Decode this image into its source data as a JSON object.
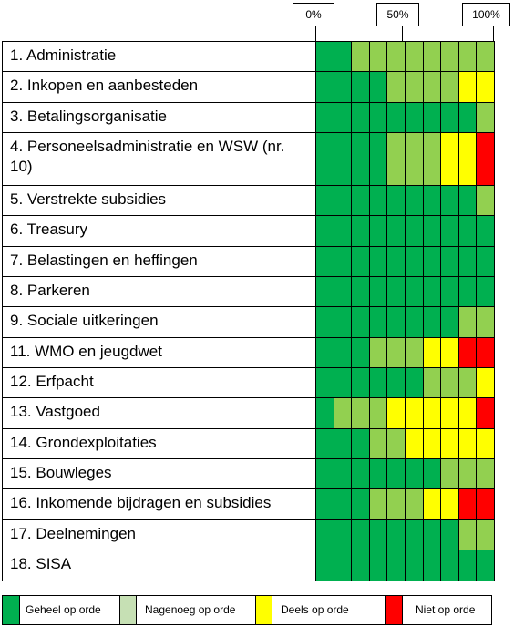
{
  "header": {
    "scale_labels": [
      "0%",
      "50%",
      "100%"
    ]
  },
  "table": {
    "rows": [
      {
        "label": "1. Administratie",
        "cells": [
          "#00b050",
          "#00b050",
          "#92d050",
          "#92d050",
          "#92d050",
          "#92d050",
          "#92d050",
          "#92d050",
          "#92d050",
          "#92d050"
        ]
      },
      {
        "label": "2. Inkopen en aanbesteden",
        "cells": [
          "#00b050",
          "#00b050",
          "#00b050",
          "#00b050",
          "#92d050",
          "#92d050",
          "#92d050",
          "#92d050",
          "#ffff00",
          "#ffff00"
        ]
      },
      {
        "label": "3. Betalingsorganisatie",
        "cells": [
          "#00b050",
          "#00b050",
          "#00b050",
          "#00b050",
          "#00b050",
          "#00b050",
          "#00b050",
          "#00b050",
          "#00b050",
          "#92d050"
        ]
      },
      {
        "label": "4. Personeelsadministratie en WSW (nr. 10)",
        "cells": [
          "#00b050",
          "#00b050",
          "#00b050",
          "#00b050",
          "#92d050",
          "#92d050",
          "#92d050",
          "#ffff00",
          "#ffff00",
          "#ff0000"
        ]
      },
      {
        "label": "5. Verstrekte subsidies",
        "cells": [
          "#00b050",
          "#00b050",
          "#00b050",
          "#00b050",
          "#00b050",
          "#00b050",
          "#00b050",
          "#00b050",
          "#00b050",
          "#92d050"
        ]
      },
      {
        "label": "6. Treasury",
        "cells": [
          "#00b050",
          "#00b050",
          "#00b050",
          "#00b050",
          "#00b050",
          "#00b050",
          "#00b050",
          "#00b050",
          "#00b050",
          "#00b050"
        ]
      },
      {
        "label": "7. Belastingen en heffingen",
        "cells": [
          "#00b050",
          "#00b050",
          "#00b050",
          "#00b050",
          "#00b050",
          "#00b050",
          "#00b050",
          "#00b050",
          "#00b050",
          "#00b050"
        ]
      },
      {
        "label": "8. Parkeren",
        "cells": [
          "#00b050",
          "#00b050",
          "#00b050",
          "#00b050",
          "#00b050",
          "#00b050",
          "#00b050",
          "#00b050",
          "#00b050",
          "#00b050"
        ]
      },
      {
        "label": "9. Sociale uitkeringen",
        "cells": [
          "#00b050",
          "#00b050",
          "#00b050",
          "#00b050",
          "#00b050",
          "#00b050",
          "#00b050",
          "#00b050",
          "#92d050",
          "#92d050"
        ]
      },
      {
        "label": "11. WMO en jeugdwet",
        "cells": [
          "#00b050",
          "#00b050",
          "#00b050",
          "#92d050",
          "#92d050",
          "#92d050",
          "#ffff00",
          "#ffff00",
          "#ff0000",
          "#ff0000"
        ]
      },
      {
        "label": "12. Erfpacht",
        "cells": [
          "#00b050",
          "#00b050",
          "#00b050",
          "#00b050",
          "#00b050",
          "#00b050",
          "#92d050",
          "#92d050",
          "#92d050",
          "#ffff00"
        ]
      },
      {
        "label": "13. Vastgoed",
        "cells": [
          "#00b050",
          "#92d050",
          "#92d050",
          "#92d050",
          "#ffff00",
          "#ffff00",
          "#ffff00",
          "#ffff00",
          "#ffff00",
          "#ff0000"
        ]
      },
      {
        "label": "14. Grondexploitaties",
        "cells": [
          "#00b050",
          "#00b050",
          "#00b050",
          "#92d050",
          "#92d050",
          "#ffff00",
          "#ffff00",
          "#ffff00",
          "#ffff00",
          "#ffff00"
        ]
      },
      {
        "label": "15. Bouwleges",
        "cells": [
          "#00b050",
          "#00b050",
          "#00b050",
          "#00b050",
          "#00b050",
          "#00b050",
          "#00b050",
          "#92d050",
          "#92d050",
          "#92d050"
        ]
      },
      {
        "label": "16. Inkomende bijdragen en subsidies",
        "cells": [
          "#00b050",
          "#00b050",
          "#00b050",
          "#92d050",
          "#92d050",
          "#92d050",
          "#ffff00",
          "#ffff00",
          "#ff0000",
          "#ff0000"
        ]
      },
      {
        "label": "17. Deelnemingen",
        "cells": [
          "#00b050",
          "#00b050",
          "#00b050",
          "#00b050",
          "#00b050",
          "#00b050",
          "#00b050",
          "#00b050",
          "#92d050",
          "#92d050"
        ]
      },
      {
        "label": "18. SISA",
        "cells": [
          "#00b050",
          "#00b050",
          "#00b050",
          "#00b050",
          "#00b050",
          "#00b050",
          "#00b050",
          "#00b050",
          "#00b050",
          "#00b050"
        ]
      }
    ]
  },
  "legend": [
    {
      "label": "Geheel op orde",
      "color": "#00b050"
    },
    {
      "label": "Nagenoeg op orde",
      "color": "#c6e0b4"
    },
    {
      "label": "Deels op orde",
      "color": "#ffff00"
    },
    {
      "label": "Niet op orde",
      "color": "#ff0000"
    }
  ]
}
